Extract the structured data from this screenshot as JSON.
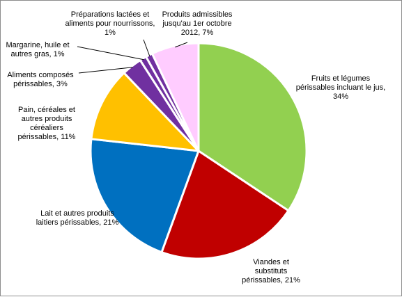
{
  "chart_data": {
    "type": "pie",
    "title": "",
    "slices": [
      {
        "label": "Fruits et légumes périssables incluant le jus, 34%",
        "category": "Fruits et légumes périssables incluant le jus",
        "value": 34,
        "color": "#92d050"
      },
      {
        "label": "Viandes et substituts périssables, 21%",
        "category": "Viandes et substituts périssables",
        "value": 21,
        "color": "#c00000"
      },
      {
        "label": "Lait et autres produits laitiers périssables, 21%",
        "category": "Lait et autres produits laitiers périssables",
        "value": 21,
        "color": "#0070c0"
      },
      {
        "label": "Pain, céréales et autres produits céréaliers périssables, 11%",
        "category": "Pain, céréales et autres produits céréaliers périssables",
        "value": 11,
        "color": "#ffc000"
      },
      {
        "label": "Aliments composés périssables, 3%",
        "category": "Aliments composés périssables",
        "value": 3,
        "color": "#7030a0"
      },
      {
        "label": "Margarine, huile et autres gras, 1%",
        "category": "Margarine, huile et autres gras",
        "value": 1,
        "color": "#7030a0"
      },
      {
        "label": "Préparations lactées et aliments pour nourrissons, 1%",
        "category": "Préparations lactées et aliments pour nourrissons",
        "value": 1,
        "color": "#7030a0"
      },
      {
        "label": "Produits admissibles jusqu'au 1er octobre 2012, 7%",
        "category": "Produits admissibles jusqu'au 1er octobre 2012",
        "value": 7,
        "color": "#ffccff"
      }
    ],
    "slice_border_color": "#ffffff",
    "legend": "none",
    "data_labels": "outside, category and percent"
  }
}
